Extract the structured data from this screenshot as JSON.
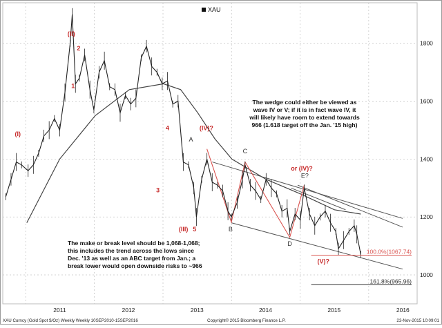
{
  "chart_data": {
    "type": "line",
    "title": "",
    "legend": {
      "entries": [
        "XAU"
      ],
      "placement": "top-center"
    },
    "series": [
      {
        "name": "XAU",
        "kind": "candlestick-proxy-close",
        "x": [
          "2010-09-17",
          "2010-10-15",
          "2010-11-12",
          "2010-12-10",
          "2011-01-14",
          "2011-02-11",
          "2011-03-11",
          "2011-04-08",
          "2011-05-06",
          "2011-06-03",
          "2011-07-01",
          "2011-07-29",
          "2011-08-26",
          "2011-09-06",
          "2011-09-23",
          "2011-10-14",
          "2011-11-11",
          "2011-12-09",
          "2011-12-30",
          "2012-01-27",
          "2012-02-24",
          "2012-03-23",
          "2012-04-20",
          "2012-05-18",
          "2012-06-15",
          "2012-07-13",
          "2012-08-10",
          "2012-09-07",
          "2012-10-05",
          "2012-11-02",
          "2012-11-30",
          "2012-12-28",
          "2013-01-25",
          "2013-02-22",
          "2013-03-22",
          "2013-04-19",
          "2013-05-17",
          "2013-06-14",
          "2013-06-28",
          "2013-07-26",
          "2013-08-23",
          "2013-09-20",
          "2013-10-18",
          "2013-11-15",
          "2013-12-13",
          "2013-12-31",
          "2014-01-31",
          "2014-02-28",
          "2014-03-14",
          "2014-04-11",
          "2014-05-09",
          "2014-06-06",
          "2014-07-04",
          "2014-08-01",
          "2014-08-29",
          "2014-09-26",
          "2014-10-24",
          "2014-11-07",
          "2014-12-05",
          "2015-01-02",
          "2015-01-23",
          "2015-02-20",
          "2015-03-20",
          "2015-04-17",
          "2015-05-15",
          "2015-06-12",
          "2015-07-10",
          "2015-07-24",
          "2015-08-21",
          "2015-09-18",
          "2015-10-16",
          "2015-10-30",
          "2015-11-20"
        ],
        "y": [
          1270,
          1330,
          1390,
          1380,
          1360,
          1380,
          1420,
          1480,
          1500,
          1540,
          1500,
          1630,
          1800,
          1900,
          1660,
          1680,
          1760,
          1640,
          1570,
          1700,
          1740,
          1650,
          1640,
          1560,
          1620,
          1590,
          1610,
          1750,
          1790,
          1720,
          1700,
          1660,
          1670,
          1590,
          1600,
          1390,
          1380,
          1300,
          1200,
          1330,
          1400,
          1320,
          1310,
          1290,
          1220,
          1200,
          1250,
          1330,
          1380,
          1310,
          1290,
          1260,
          1330,
          1300,
          1280,
          1220,
          1230,
          1150,
          1210,
          1190,
          1300,
          1210,
          1170,
          1200,
          1220,
          1180,
          1150,
          1090,
          1120,
          1150,
          1170,
          1140,
          1070
        ]
      },
      {
        "name": "",
        "kind": "moving-average",
        "x": [
          "2011-01-07",
          "2011-07-01",
          "2012-01-06",
          "2012-07-06",
          "2013-01-04",
          "2013-04-05",
          "2013-07-05",
          "2013-10-04",
          "2014-01-03",
          "2014-07-04",
          "2015-01-02",
          "2015-07-03",
          "2015-11-20"
        ],
        "y": [
          1180,
          1400,
          1550,
          1640,
          1660,
          1640,
          1560,
          1470,
          1400,
          1330,
          1280,
          1225,
          1210
        ]
      }
    ],
    "trendlines": [
      {
        "from": [
          "2013-09-20",
          1390
        ],
        "to": [
          "2016-06-30",
          1195
        ]
      },
      {
        "from": [
          "2013-12-31",
          1180
        ],
        "to": [
          "2016-06-30",
          1020
        ]
      },
      {
        "from": [
          "2014-11-14",
          1300
        ],
        "to": [
          "2015-08-31",
          1225
        ]
      },
      {
        "from": [
          "2014-12-19",
          1310
        ],
        "to": [
          "2016-06-30",
          1165
        ]
      }
    ],
    "abc_path": [
      [
        "2013-08-23",
        1435
      ],
      [
        "2013-12-31",
        1182
      ],
      [
        "2014-03-14",
        1390
      ],
      [
        "2014-11-07",
        1130
      ],
      [
        "2015-01-23",
        1310
      ]
    ],
    "horizontal_levels": [
      {
        "value": 1067.74,
        "label": "100.0%(1067.74)",
        "color": "#d9534f"
      },
      {
        "value": 965.96,
        "label": "161.8%(965.96)",
        "color": "#333333"
      }
    ],
    "wave_labels": [
      {
        "text": "(I)",
        "x": "2010-11-20",
        "y": 1480,
        "color": "#c62828"
      },
      {
        "text": "(II)",
        "x": "2011-09-01",
        "y": 1825,
        "color": "#c62828"
      },
      {
        "text": "2",
        "x": "2011-10-10",
        "y": 1775,
        "color": "#c62828"
      },
      {
        "text": "1",
        "x": "2011-09-10",
        "y": 1645,
        "color": "#c62828"
      },
      {
        "text": "4",
        "x": "2013-01-25",
        "y": 1500,
        "color": "#c62828"
      },
      {
        "text": "3",
        "x": "2012-12-05",
        "y": 1285,
        "color": "#c62828"
      },
      {
        "text": "(IV)?",
        "x": "2013-08-20",
        "y": 1500,
        "color": "#c62828"
      },
      {
        "text": "A",
        "x": "2013-05-30",
        "y": 1460,
        "color": "#333333"
      },
      {
        "text": "(III)",
        "x": "2013-04-20",
        "y": 1150,
        "color": "#c62828"
      },
      {
        "text": "5",
        "x": "2013-06-18",
        "y": 1150,
        "color": "#c62828"
      },
      {
        "text": "B",
        "x": "2013-12-27",
        "y": 1150,
        "color": "#333333"
      },
      {
        "text": "C",
        "x": "2014-03-14",
        "y": 1420,
        "color": "#333333"
      },
      {
        "text": "D",
        "x": "2014-11-07",
        "y": 1100,
        "color": "#333333"
      },
      {
        "text": "E?",
        "x": "2015-01-26",
        "y": 1335,
        "color": "#333333"
      },
      {
        "text": "or (IV)?",
        "x": "2015-01-10",
        "y": 1360,
        "color": "#c62828"
      },
      {
        "text": "(V)?",
        "x": "2015-05-05",
        "y": 1040,
        "color": "#c62828"
      }
    ],
    "xlabel": "",
    "ylabel": "",
    "x_ticks": [
      "2011",
      "2012",
      "2013",
      "2014",
      "2015",
      "2016"
    ],
    "y_ticks": [
      1000,
      1200,
      1400,
      1600,
      1800
    ],
    "xlim": [
      "2010-09-01",
      "2016-09-15"
    ],
    "ylim": [
      900,
      1940
    ],
    "grid": true,
    "axis_side": "right"
  },
  "annotations": {
    "top_right": [
      "The wedge could either be viewed as",
      "wave IV or V; if it is in fact  wave  IV, it",
      "will likely have room to extend towards",
      "966 (1.618 target off the Jan. '15 high)"
    ],
    "bottom_left": [
      "The make or break level should be 1,068-1,068;",
      "this includes the  trend  across  the lows since",
      "Dec. '13 as well as  an ABC target from Jan.; a",
      "break lower would open downside risks to ~966"
    ]
  },
  "footer": {
    "left": "XAU Curncy (Gold Spot  $/Oz) Weekly  Weekly 10SEP2010-15SEP2016",
    "center": "Copyright© 2015 Bloomberg Finance L.P.",
    "right": "23-Nov-2015 10:09:01"
  },
  "colors": {
    "price": "#222222",
    "ma": "#444444",
    "wave_label": "#c62828",
    "trendline": "#555555",
    "abc_path": "#d9534f",
    "grid": "#c8c8c8"
  }
}
